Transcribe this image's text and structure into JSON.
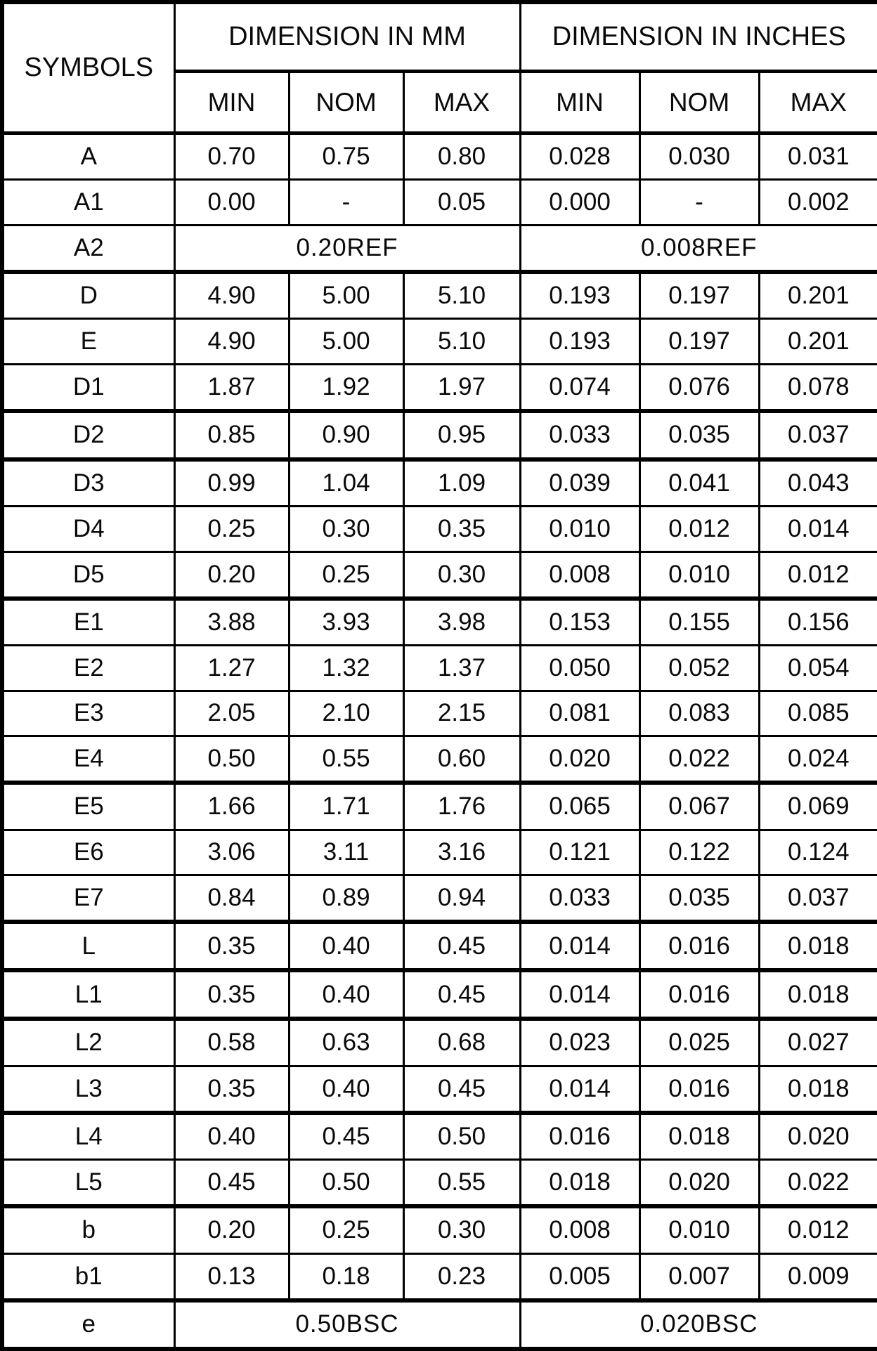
{
  "table": {
    "symbols_header": "SYMBOLS",
    "section_mm_label": "DIMENSION IN MM",
    "section_inches_label": "DIMENSION IN INCHES",
    "subheaders": [
      "MIN",
      "NOM",
      "MAX",
      "MIN",
      "NOM",
      "MAX"
    ],
    "rows": [
      {
        "symbol": "A",
        "mm": [
          "0.70",
          "0.75",
          "0.80"
        ],
        "inches": [
          "0.028",
          "0.030",
          "0.031"
        ],
        "thick_bottom": false
      },
      {
        "symbol": "A1",
        "mm": [
          "0.00",
          "-",
          "0.05"
        ],
        "inches": [
          "0.000",
          "-",
          "0.002"
        ],
        "thick_bottom": false
      },
      {
        "symbol": "A2",
        "mm_span": "0.20REF",
        "inches_span": "0.008REF",
        "thick_bottom": true
      },
      {
        "symbol": "D",
        "mm": [
          "4.90",
          "5.00",
          "5.10"
        ],
        "inches": [
          "0.193",
          "0.197",
          "0.201"
        ],
        "thick_bottom": false
      },
      {
        "symbol": "E",
        "mm": [
          "4.90",
          "5.00",
          "5.10"
        ],
        "inches": [
          "0.193",
          "0.197",
          "0.201"
        ],
        "thick_bottom": false
      },
      {
        "symbol": "D1",
        "mm": [
          "1.87",
          "1.92",
          "1.97"
        ],
        "inches": [
          "0.074",
          "0.076",
          "0.078"
        ],
        "thick_bottom": true
      },
      {
        "symbol": "D2",
        "mm": [
          "0.85",
          "0.90",
          "0.95"
        ],
        "inches": [
          "0.033",
          "0.035",
          "0.037"
        ],
        "thick_bottom": true
      },
      {
        "symbol": "D3",
        "mm": [
          "0.99",
          "1.04",
          "1.09"
        ],
        "inches": [
          "0.039",
          "0.041",
          "0.043"
        ],
        "thick_bottom": false
      },
      {
        "symbol": "D4",
        "mm": [
          "0.25",
          "0.30",
          "0.35"
        ],
        "inches": [
          "0.010",
          "0.012",
          "0.014"
        ],
        "thick_bottom": false
      },
      {
        "symbol": "D5",
        "mm": [
          "0.20",
          "0.25",
          "0.30"
        ],
        "inches": [
          "0.008",
          "0.010",
          "0.012"
        ],
        "thick_bottom": true
      },
      {
        "symbol": "E1",
        "mm": [
          "3.88",
          "3.93",
          "3.98"
        ],
        "inches": [
          "0.153",
          "0.155",
          "0.156"
        ],
        "thick_bottom": false
      },
      {
        "symbol": "E2",
        "mm": [
          "1.27",
          "1.32",
          "1.37"
        ],
        "inches": [
          "0.050",
          "0.052",
          "0.054"
        ],
        "thick_bottom": false
      },
      {
        "symbol": "E3",
        "mm": [
          "2.05",
          "2.10",
          "2.15"
        ],
        "inches": [
          "0.081",
          "0.083",
          "0.085"
        ],
        "thick_bottom": false
      },
      {
        "symbol": "E4",
        "mm": [
          "0.50",
          "0.55",
          "0.60"
        ],
        "inches": [
          "0.020",
          "0.022",
          "0.024"
        ],
        "thick_bottom": true
      },
      {
        "symbol": "E5",
        "mm": [
          "1.66",
          "1.71",
          "1.76"
        ],
        "inches": [
          "0.065",
          "0.067",
          "0.069"
        ],
        "thick_bottom": false
      },
      {
        "symbol": "E6",
        "mm": [
          "3.06",
          "3.11",
          "3.16"
        ],
        "inches": [
          "0.121",
          "0.122",
          "0.124"
        ],
        "thick_bottom": false
      },
      {
        "symbol": "E7",
        "mm": [
          "0.84",
          "0.89",
          "0.94"
        ],
        "inches": [
          "0.033",
          "0.035",
          "0.037"
        ],
        "thick_bottom": true
      },
      {
        "symbol": "L",
        "mm": [
          "0.35",
          "0.40",
          "0.45"
        ],
        "inches": [
          "0.014",
          "0.016",
          "0.018"
        ],
        "thick_bottom": true
      },
      {
        "symbol": "L1",
        "mm": [
          "0.35",
          "0.40",
          "0.45"
        ],
        "inches": [
          "0.014",
          "0.016",
          "0.018"
        ],
        "thick_bottom": true
      },
      {
        "symbol": "L2",
        "mm": [
          "0.58",
          "0.63",
          "0.68"
        ],
        "inches": [
          "0.023",
          "0.025",
          "0.027"
        ],
        "thick_bottom": false
      },
      {
        "symbol": "L3",
        "mm": [
          "0.35",
          "0.40",
          "0.45"
        ],
        "inches": [
          "0.014",
          "0.016",
          "0.018"
        ],
        "thick_bottom": true
      },
      {
        "symbol": "L4",
        "mm": [
          "0.40",
          "0.45",
          "0.50"
        ],
        "inches": [
          "0.016",
          "0.018",
          "0.020"
        ],
        "thick_bottom": false
      },
      {
        "symbol": "L5",
        "mm": [
          "0.45",
          "0.50",
          "0.55"
        ],
        "inches": [
          "0.018",
          "0.020",
          "0.022"
        ],
        "thick_bottom": true
      },
      {
        "symbol": "b",
        "mm": [
          "0.20",
          "0.25",
          "0.30"
        ],
        "inches": [
          "0.008",
          "0.010",
          "0.012"
        ],
        "thick_bottom": false
      },
      {
        "symbol": "b1",
        "mm": [
          "0.13",
          "0.18",
          "0.23"
        ],
        "inches": [
          "0.005",
          "0.007",
          "0.009"
        ],
        "thick_bottom": true
      },
      {
        "symbol": "e",
        "mm_span": "0.50BSC",
        "inches_span": "0.020BSC",
        "thick_bottom": false
      }
    ]
  },
  "colors": {
    "text": "#0a0a0a",
    "border": "#000000",
    "background": "#ffffff"
  }
}
